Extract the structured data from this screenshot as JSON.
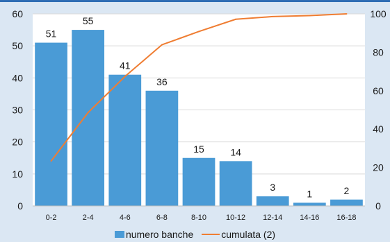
{
  "chart_data": {
    "type": "bar",
    "categories": [
      "0-2",
      "2-4",
      "4-6",
      "6-8",
      "8-10",
      "10-12",
      "12-14",
      "14-16",
      "16-18"
    ],
    "series": [
      {
        "name": "numero banche",
        "type": "bar",
        "axis": "left",
        "values": [
          51,
          55,
          41,
          36,
          15,
          14,
          3,
          1,
          2
        ],
        "data_labels": [
          "51",
          "55",
          "41",
          "36",
          "15",
          "14",
          "3",
          "1",
          "2"
        ]
      },
      {
        "name": "cumulata (2)",
        "type": "line",
        "axis": "right",
        "values": [
          23.4,
          48.6,
          67.4,
          83.9,
          90.8,
          97.2,
          98.6,
          99.1,
          100
        ]
      }
    ],
    "y_left": {
      "ylim": [
        0,
        60
      ],
      "ticks": [
        "0",
        "10",
        "20",
        "30",
        "40",
        "50",
        "60"
      ]
    },
    "y_right": {
      "ylim": [
        0,
        100
      ],
      "ticks": [
        "0",
        "20",
        "40",
        "60",
        "80",
        "100"
      ]
    },
    "grid": true,
    "legend_position": "bottom",
    "colors": {
      "bar": "#4a9bd6",
      "line": "#ef7d32",
      "grid": "#d9d9d9",
      "plot_background": "#ffffff",
      "page_background": "#dbe7f3"
    },
    "title": "",
    "xlabel": "",
    "ylabel": ""
  }
}
